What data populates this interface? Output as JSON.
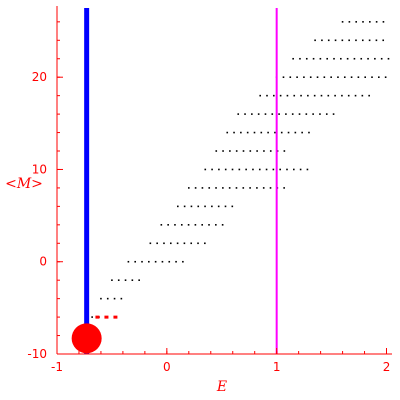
{
  "chart_data": {
    "type": "scatter",
    "xlabel": "E",
    "ylabel": "<M>",
    "xlim": [
      -1,
      2.05
    ],
    "ylim": [
      -10,
      27.5
    ],
    "xticks": [
      -1,
      0,
      1,
      2
    ],
    "yticks": [
      -10,
      0,
      10,
      20
    ],
    "x_tick_labels": [
      "-1",
      "0",
      "1",
      "2"
    ],
    "y_tick_labels": [
      "-10",
      "0",
      "10",
      "20"
    ],
    "vertical_lines": [
      {
        "x": -0.73,
        "color": "#0000ff"
      },
      {
        "x": 1.0,
        "color": "#ff00ff"
      }
    ],
    "highlight_point": {
      "x": -0.73,
      "y": -8.3,
      "color": "#ff0000"
    },
    "red_segment": {
      "x": [
        -0.65,
        -0.45
      ],
      "y": -6.0,
      "color": "#ff0000"
    },
    "rows": [
      {
        "y": -6,
        "x_start": -0.68,
        "x_end": -0.6
      },
      {
        "y": -4,
        "x_start": -0.6,
        "x_end": -0.4
      },
      {
        "y": -2,
        "x_start": -0.5,
        "x_end": -0.25
      },
      {
        "y": 0,
        "x_start": -0.35,
        "x_end": 0.2
      },
      {
        "y": 2,
        "x_start": -0.15,
        "x_end": 0.35
      },
      {
        "y": 4,
        "x_start": -0.05,
        "x_end": 0.55
      },
      {
        "y": 6,
        "x_start": 0.1,
        "x_end": 0.65
      },
      {
        "y": 8,
        "x_start": 0.2,
        "x_end": 1.1
      },
      {
        "y": 10,
        "x_start": 0.35,
        "x_end": 1.3
      },
      {
        "y": 12,
        "x_start": 0.45,
        "x_end": 1.1
      },
      {
        "y": 14,
        "x_start": 0.55,
        "x_end": 1.35
      },
      {
        "y": 16,
        "x_start": 0.65,
        "x_end": 1.55
      },
      {
        "y": 18,
        "x_start": 0.85,
        "x_end": 1.85
      },
      {
        "y": 20,
        "x_start": 1.0,
        "x_end": 2.0
      },
      {
        "y": 22,
        "x_start": 1.15,
        "x_end": 2.05
      },
      {
        "y": 24,
        "x_start": 1.35,
        "x_end": 2.0
      },
      {
        "y": 26,
        "x_start": 1.6,
        "x_end": 2.0
      }
    ],
    "dot_spacing": 0.062,
    "point_color": "#000000",
    "axis_color": "#ff0000",
    "grid": false,
    "legend": "none"
  }
}
